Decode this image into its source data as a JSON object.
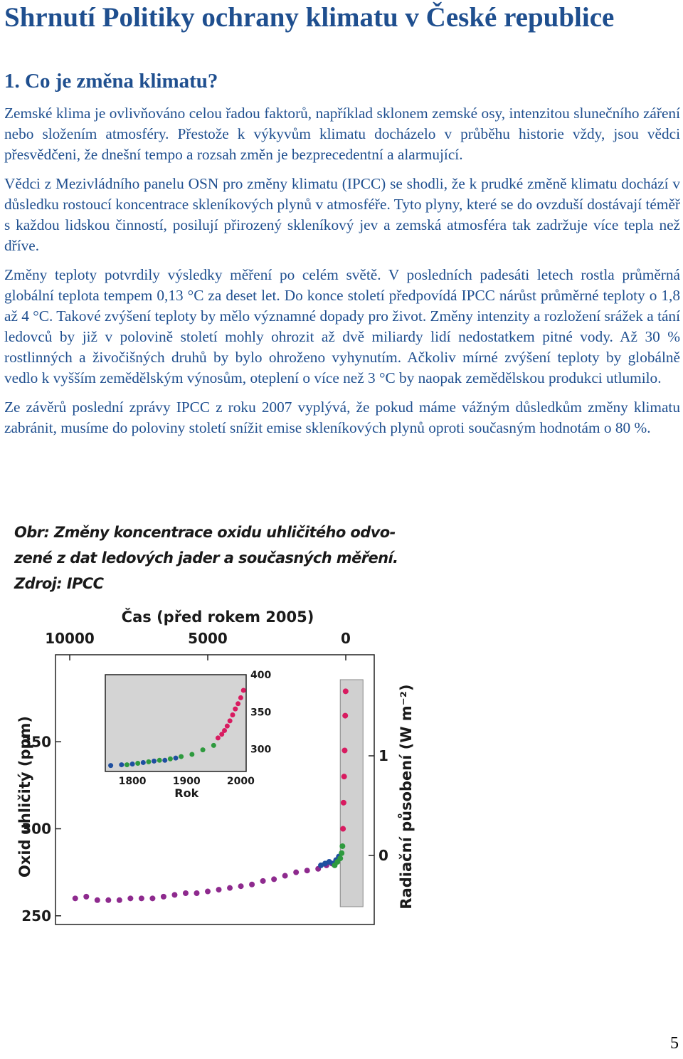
{
  "document": {
    "title": "Shrnutí Politiky ochrany klimatu v České republice",
    "section_heading": "1. Co je změna klimatu?",
    "paragraphs": [
      {
        "segments": [
          {
            "text": "Zemské klima je ovlivňováno celou řadou faktorů, například sklonem zemské osy, intenzitou slunečního záření nebo složením atmosféry.",
            "color": "blue"
          },
          {
            "text": " Přestože k výkyvům klimatu docházelo v průběhu historie vždy, jsou vědci přesvědčeni, že dnešní tempo a rozsah změn je bezprecedentní a alarmující.",
            "color": "blue"
          }
        ]
      },
      {
        "segments": [
          {
            "text": "Vědci z Mezivládního panelu OSN pro změny klimatu (IPCC) se shodli, že k prudké změně klimatu dochází v důsledku rostoucí koncentrace skleníkových plynů v atmosféře.",
            "color": "blue"
          },
          {
            "text": " Tyto plyny, které se do ovzduší dostávají téměř s každou lidskou činností, posilují přirozený skleníkový jev a zemská atmosféra tak zadržuje více tepla než dříve.",
            "color": "blue"
          }
        ]
      },
      {
        "segments": [
          {
            "text": "Změny teploty potvrdily výsledky měření po celém světě.",
            "color": "blue"
          },
          {
            "text": " V posledních padesáti letech rostla průměrná globální teplota tempem 0,13 °C za deset let.",
            "color": "blue"
          },
          {
            "text": " Do konce století předpovídá IPCC nárůst průměrné teploty o 1,8 až 4 °C.",
            "color": "blue"
          },
          {
            "text": " Takové zvýšení teploty by mělo významné dopady pro život.",
            "color": "blue"
          },
          {
            "text": " Změny intenzity a rozložení srážek a tání ledovců by již v polovině století mohly ohrozit až dvě miliardy lidí nedostatkem pitné vody.",
            "color": "blue"
          },
          {
            "text": " Až 30 % rostlinných a živočišných druhů by bylo ohroženo vyhynutím.",
            "color": "blue"
          },
          {
            "text": " Ačkoliv mírné zvýšení teploty by globálně vedlo k vyšším zemědělským výnosům, oteplení o více než 3 °C by naopak zemědělskou produkci utlumilo.",
            "color": "blue"
          }
        ]
      },
      {
        "segments": [
          {
            "text": "Ze závěrů poslední zprávy IPCC z roku 2007 vyplývá, že pokud máme vážným důsledkům změny klimatu zabránit, musíme do poloviny století snížit emise skleníkových plynů oproti současným hodnotám o 80 %.",
            "color": "blue"
          }
        ]
      }
    ],
    "page_number": "5"
  },
  "colors": {
    "heading": "#1f4f8f",
    "body_blue": "#1f4f8f"
  },
  "figure": {
    "caption_lines": [
      "Obr: Změny koncentrace oxidu uhličitého odvo-",
      "zené z dat ledových jader a současných měření.",
      "Zdroj: IPCC"
    ]
  },
  "chart_data": [
    {
      "type": "scatter",
      "title": "",
      "xlabel": "Čas (před rokem 2005)",
      "ylabel": "Oxid uhličitý (ppm)",
      "ylabel_right": "Radiační působení (W m⁻²)",
      "x_ticks": [
        "10000",
        "5000",
        "0"
      ],
      "xlim": [
        10000,
        0
      ],
      "y_ticks": [
        "250",
        "300",
        "350"
      ],
      "ylim": [
        245,
        400
      ],
      "y_right_ticks": [
        "0",
        "1"
      ],
      "series": [
        {
          "color": "#8e2a8e",
          "x": [
            9800,
            9400,
            9000,
            8600,
            8200,
            7800,
            7400,
            7000,
            6600,
            6200,
            5800,
            5400,
            5000,
            4600,
            4200,
            3800,
            3400,
            3000,
            2600,
            2200,
            1800,
            1400,
            1000,
            700,
            500
          ],
          "y": [
            260,
            261,
            259,
            259,
            259,
            260,
            260,
            260,
            261,
            262,
            263,
            263,
            264,
            265,
            266,
            267,
            268,
            270,
            271,
            273,
            275,
            276,
            277,
            279,
            280
          ]
        },
        {
          "color": "#1f4fa0",
          "x": [
            900,
            750,
            600,
            450,
            350,
            250
          ],
          "y": [
            279,
            280,
            281,
            280,
            282,
            284
          ]
        },
        {
          "color": "#2e9a3e",
          "x": [
            400,
            300,
            200,
            150,
            120
          ],
          "y": [
            279,
            281,
            283,
            286,
            290
          ]
        },
        {
          "color": "#d81b60",
          "x": [
            100,
            80,
            60,
            40,
            20,
            5
          ],
          "y": [
            300,
            315,
            330,
            345,
            365,
            379
          ]
        }
      ]
    },
    {
      "type": "scatter",
      "title": "",
      "xlabel": "Rok",
      "ylabel": "",
      "x_ticks": [
        "1800",
        "1900",
        "2000"
      ],
      "xlim": [
        1750,
        2010
      ],
      "y_ticks": [
        "300",
        "350",
        "400"
      ],
      "ylim": [
        270,
        400
      ],
      "series": [
        {
          "color": "#1f4fa0",
          "x": [
            1760,
            1780,
            1800,
            1820,
            1840,
            1860,
            1880
          ],
          "y": [
            278,
            279,
            280,
            282,
            284,
            285,
            288
          ]
        },
        {
          "color": "#2e9a3e",
          "x": [
            1790,
            1810,
            1830,
            1850,
            1870,
            1890,
            1910,
            1930,
            1950
          ],
          "y": [
            279,
            281,
            283,
            285,
            287,
            290,
            293,
            299,
            305
          ]
        },
        {
          "color": "#d81b60",
          "x": [
            1958,
            1965,
            1970,
            1975,
            1980,
            1985,
            1990,
            1995,
            2000,
            2005
          ],
          "y": [
            315,
            320,
            325,
            331,
            338,
            346,
            354,
            361,
            369,
            379
          ]
        }
      ]
    }
  ]
}
